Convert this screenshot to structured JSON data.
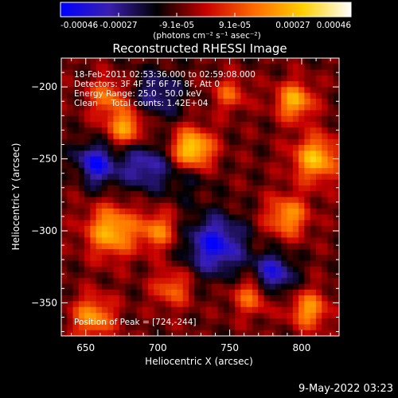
{
  "chart_data": {
    "type": "heatmap",
    "title": "Reconstructed RHESSI Image",
    "xlabel": "Heliocentric X (arcsec)",
    "ylabel": "Heliocentric Y (arcsec)",
    "xlim": [
      633,
      826
    ],
    "ylim": [
      -373,
      -180
    ],
    "x_ticks": [
      650,
      700,
      750,
      800
    ],
    "y_ticks": [
      -200,
      -250,
      -300,
      -350
    ],
    "annotations": [
      "18-Feb-2011 02:53:36.000 to 02:59:08.000",
      "Detectors: 3F 4F 5F 6F 7F 8F, Att 0",
      "Energy Range: 25.0 - 50.0 keV",
      "Clean     Total counts: 1.42E+04"
    ],
    "peak_label": "Position of Peak = [724,-244]",
    "peak": [
      724,
      -244
    ],
    "colorbar": {
      "range": [
        -0.00046,
        0.00046
      ],
      "tick_labels": [
        "-0.00046",
        "-0.00027",
        "-9.1e-05",
        "9.1e-05",
        "0.00027",
        "0.00046"
      ],
      "unit_label": "(photons cm⁻² s⁻¹ asec⁻²)",
      "colors": [
        "#0000ff",
        "#3a1fb0",
        "#000000",
        "#c80000",
        "#ff6a00",
        "#ffd000",
        "#ffffff"
      ]
    },
    "grid": false,
    "sources": [
      {
        "x": 724,
        "y": -244,
        "amp": 0.00046,
        "sigma": 10
      },
      {
        "x": 678,
        "y": -228,
        "amp": 0.00032,
        "sigma": 9
      },
      {
        "x": 665,
        "y": -207,
        "amp": 0.00024,
        "sigma": 9
      },
      {
        "x": 795,
        "y": -210,
        "amp": 0.00034,
        "sigma": 9
      },
      {
        "x": 810,
        "y": -250,
        "amp": 0.00036,
        "sigma": 11
      },
      {
        "x": 790,
        "y": -290,
        "amp": 0.0003,
        "sigma": 10
      },
      {
        "x": 668,
        "y": -300,
        "amp": 0.00036,
        "sigma": 12
      },
      {
        "x": 700,
        "y": -300,
        "amp": 0.00026,
        "sigma": 9
      },
      {
        "x": 655,
        "y": -360,
        "amp": 0.0003,
        "sigma": 10
      },
      {
        "x": 710,
        "y": -340,
        "amp": 0.00022,
        "sigma": 9
      },
      {
        "x": 765,
        "y": -345,
        "amp": 0.00024,
        "sigma": 9
      },
      {
        "x": 805,
        "y": -355,
        "amp": 0.0003,
        "sigma": 9
      },
      {
        "x": 750,
        "y": -205,
        "amp": 0.0002,
        "sigma": 8
      },
      {
        "x": 648,
        "y": -260,
        "amp": 0.00014,
        "sigma": 8
      },
      {
        "x": 655,
        "y": -255,
        "amp": -0.0004,
        "sigma": 10
      },
      {
        "x": 740,
        "y": -310,
        "amp": -0.00034,
        "sigma": 14
      },
      {
        "x": 720,
        "y": -260,
        "amp": -0.00012,
        "sigma": 12
      },
      {
        "x": 700,
        "y": -205,
        "amp": -0.0002,
        "sigma": 12
      },
      {
        "x": 780,
        "y": -330,
        "amp": -0.0003,
        "sigma": 10
      },
      {
        "x": 690,
        "y": -255,
        "amp": -0.00024,
        "sigma": 12
      }
    ]
  },
  "footer": {
    "date": "9-May-2022 03:23"
  }
}
